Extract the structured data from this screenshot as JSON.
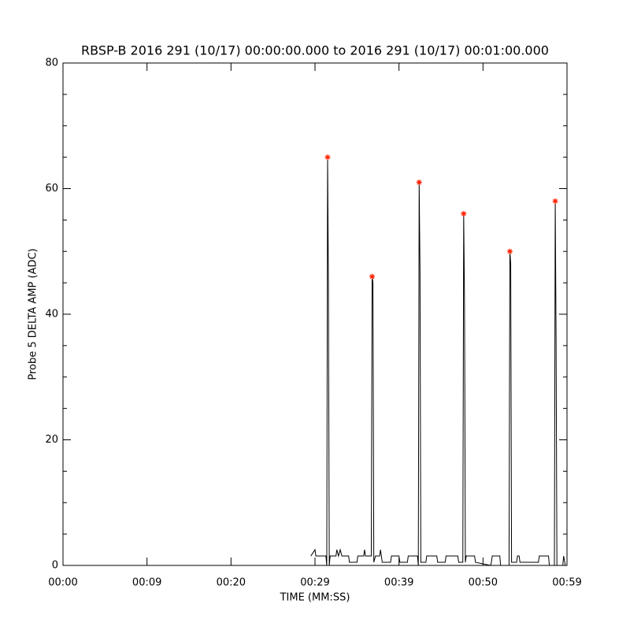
{
  "chart_data": {
    "type": "line",
    "title": "RBSP-B 2016 291 (10/17) 00:00:00.000 to 2016 291 (10/17) 00:01:00.000",
    "x_label": "TIME (MM:SS)",
    "y_label": "Probe 5 DELTA AMP (ADC)",
    "xlim": [
      0,
      60
    ],
    "xticks": [
      {
        "value": 0,
        "label": "00:00"
      },
      {
        "value": 10,
        "label": "00:09"
      },
      {
        "value": 20,
        "label": "00:20"
      },
      {
        "value": 30,
        "label": "00:29"
      },
      {
        "value": 40,
        "label": "00:39"
      },
      {
        "value": 50,
        "label": "00:50"
      },
      {
        "value": 60,
        "label": "00:59"
      }
    ],
    "ylim": [
      0,
      80
    ],
    "yticks": [
      0,
      20,
      40,
      60,
      80
    ],
    "series": [
      {
        "type": "line",
        "color": "#000000",
        "x": [
          29.5,
          30.0,
          30.1,
          31.3,
          31.4,
          31.5,
          31.6,
          31.7,
          31.8,
          32.5,
          32.6,
          32.8,
          33.0,
          33.2,
          34.0,
          34.1,
          35.0,
          35.1,
          35.8,
          35.9,
          36.0,
          36.7,
          36.8,
          36.9,
          37.0,
          37.2,
          37.7,
          37.8,
          37.9,
          38.0,
          39.0,
          39.1,
          40.0,
          40.1,
          41.0,
          41.1,
          42.2,
          42.3,
          42.4,
          42.5,
          42.6,
          43.2,
          43.3,
          44.5,
          44.6,
          45.5,
          45.6,
          47.0,
          47.1,
          47.6,
          47.7,
          47.8,
          47.9,
          48.0,
          49.0,
          49.1,
          50.9,
          51.0,
          51.1,
          52.0,
          52.1,
          53.1,
          53.2,
          53.3,
          53.4,
          54.0,
          54.1,
          54.3,
          54.4,
          56.6,
          56.7,
          57.8,
          57.9,
          58.5,
          58.6,
          58.7,
          58.8,
          59.5,
          59.6,
          59.8
        ],
        "values": [
          1.5,
          2.5,
          1.5,
          1.5,
          0,
          65,
          44,
          0,
          1.5,
          1.5,
          2.5,
          1.5,
          2.5,
          1.5,
          1.5,
          0.5,
          0.5,
          1.5,
          1.5,
          2.5,
          1.5,
          1.5,
          46,
          45,
          0.5,
          1.5,
          1.5,
          2.5,
          1.5,
          0.5,
          0.5,
          1.5,
          1.5,
          0.5,
          0.5,
          1.5,
          1.5,
          0,
          61,
          47,
          0.5,
          0.5,
          1.5,
          1.5,
          0.5,
          0.5,
          1.5,
          1.5,
          0.5,
          0.5,
          56,
          42,
          0.5,
          1.5,
          1.5,
          0.5,
          0,
          0.5,
          1.5,
          1.5,
          0,
          0,
          50,
          48,
          0.5,
          0.5,
          1.5,
          1.5,
          0.5,
          0.5,
          1.5,
          1.5,
          0,
          0,
          58,
          36,
          0,
          0,
          1.5,
          0
        ]
      },
      {
        "type": "scatter",
        "color": "#ff2200",
        "x": [
          31.5,
          36.8,
          42.4,
          47.7,
          53.2,
          58.6
        ],
        "values": [
          65,
          46,
          61,
          56,
          50,
          58
        ]
      }
    ]
  }
}
